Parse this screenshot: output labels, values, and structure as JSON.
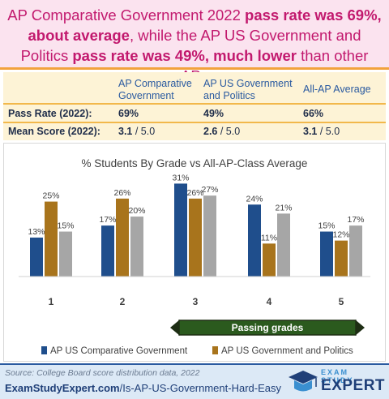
{
  "headline": {
    "p1": "AP Comparative Government 2022 ",
    "p2": "pass rate was 69%, about average",
    "p3": ", while the AP US Government and Politics ",
    "p4": "pass rate was 49%, much lower",
    "p5": " than other APs"
  },
  "summary": {
    "col1": "AP Comparative Government",
    "col2": "AP US Government and Politics",
    "col3": "All-AP Average",
    "row1_label": "Pass Rate (2022):",
    "row1_values": [
      "69%",
      "49%",
      "66%"
    ],
    "row2_label": "Mean Score (2022):",
    "row2_values": [
      "3.1",
      "2.6",
      "3.1"
    ],
    "row2_suffix": " / 5.0"
  },
  "chart_data": {
    "type": "bar",
    "title": "% Students By Grade vs All-AP-Class Average",
    "categories": [
      "1",
      "2",
      "3",
      "4",
      "5"
    ],
    "series": [
      {
        "name": "AP US Comparative Government",
        "values": [
          13,
          17,
          31,
          24,
          15
        ],
        "color": "#1f4e8c"
      },
      {
        "name": "AP US Government and Politics",
        "values": [
          25,
          26,
          26,
          11,
          12
        ],
        "color": "#a8741c"
      },
      {
        "name": "",
        "values": [
          15,
          20,
          27,
          21,
          17
        ],
        "color": "#a6a6a6"
      }
    ],
    "ylim": [
      0,
      33
    ],
    "value_suffix": "%",
    "annotation": "Passing grades",
    "legend_position": "bottom"
  },
  "footer": {
    "source": "Source: College Board score distribution data, 2022",
    "url_domain": "ExamStudyExpert.com",
    "url_path": "/Is-AP-US-Government-Hard-Easy",
    "brand_top": "EXAM STUDY",
    "brand_bottom": "EXPERT"
  },
  "colors": {
    "headline_pink": "#c2196e",
    "accent_orange": "#f2a23c",
    "navy": "#1f3f78"
  }
}
